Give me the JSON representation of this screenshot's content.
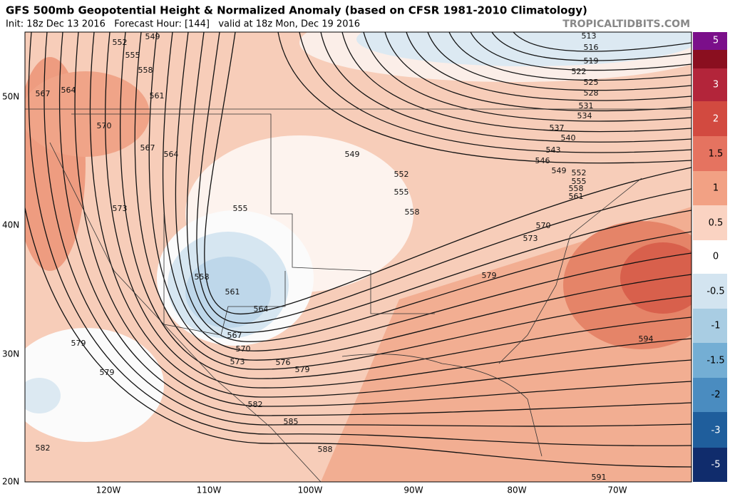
{
  "header": {
    "title": "GFS 500mb Geopotential Height & Normalized Anomaly (based on CFSR 1981-2010 Climatology)",
    "subtitle": "Init: 18z Dec 13 2016   Forecast Hour: [144]   valid at 18z Mon, Dec 19 2016",
    "brand": "TROPICALTIDBITS.COM"
  },
  "map": {
    "lat_labels": [
      "50N",
      "40N",
      "30N",
      "20N"
    ],
    "lon_labels": [
      "120W",
      "110W",
      "100W",
      "90W",
      "80W",
      "70W"
    ],
    "contour_labels": [
      549,
      552,
      555,
      558,
      561,
      564,
      567,
      570,
      567,
      564,
      573,
      555,
      558,
      561,
      564,
      567,
      570,
      573,
      576,
      579,
      579,
      579,
      582,
      585,
      588,
      582,
      591,
      594,
      579,
      573,
      570,
      561,
      558,
      555,
      552,
      549,
      546,
      543,
      540,
      537,
      534,
      531,
      528,
      525,
      522,
      519,
      516,
      513,
      549,
      552,
      555,
      558
    ]
  },
  "colorbar": {
    "labels": [
      5,
      3,
      2,
      1.5,
      1,
      0.5,
      0,
      -0.5,
      -1,
      -1.5,
      -2,
      -3,
      -5
    ]
  }
}
